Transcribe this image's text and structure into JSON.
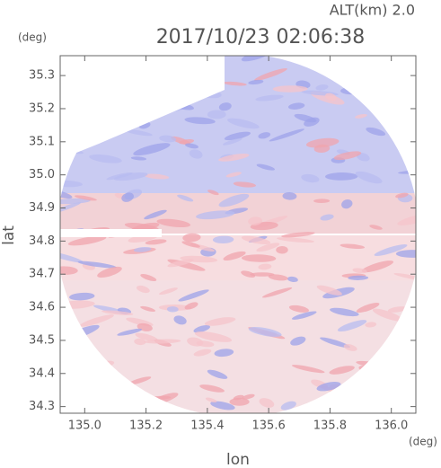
{
  "chart_data": {
    "type": "radar-image",
    "title": "2017/10/23 02:06:38",
    "subtitle": "ALT(km) 2.0",
    "y_unit": "(deg)",
    "x_unit": "(deg)",
    "xlabel": "lon",
    "ylabel": "lat",
    "xlim": [
      134.92,
      136.08
    ],
    "xticks": [
      {
        "value": 135.0,
        "label": "135.0"
      },
      135.2,
      135.4,
      135.6,
      135.8,
      {
        "value": 136.0,
        "label": "136.0"
      }
    ],
    "ylim": [
      34.28,
      35.36
    ],
    "yticks": [
      34.3,
      34.4,
      34.5,
      34.6,
      34.7,
      34.8,
      34.9,
      {
        "value": 35.0,
        "label": "35.0"
      },
      35.1,
      35.2,
      35.3
    ]
  }
}
